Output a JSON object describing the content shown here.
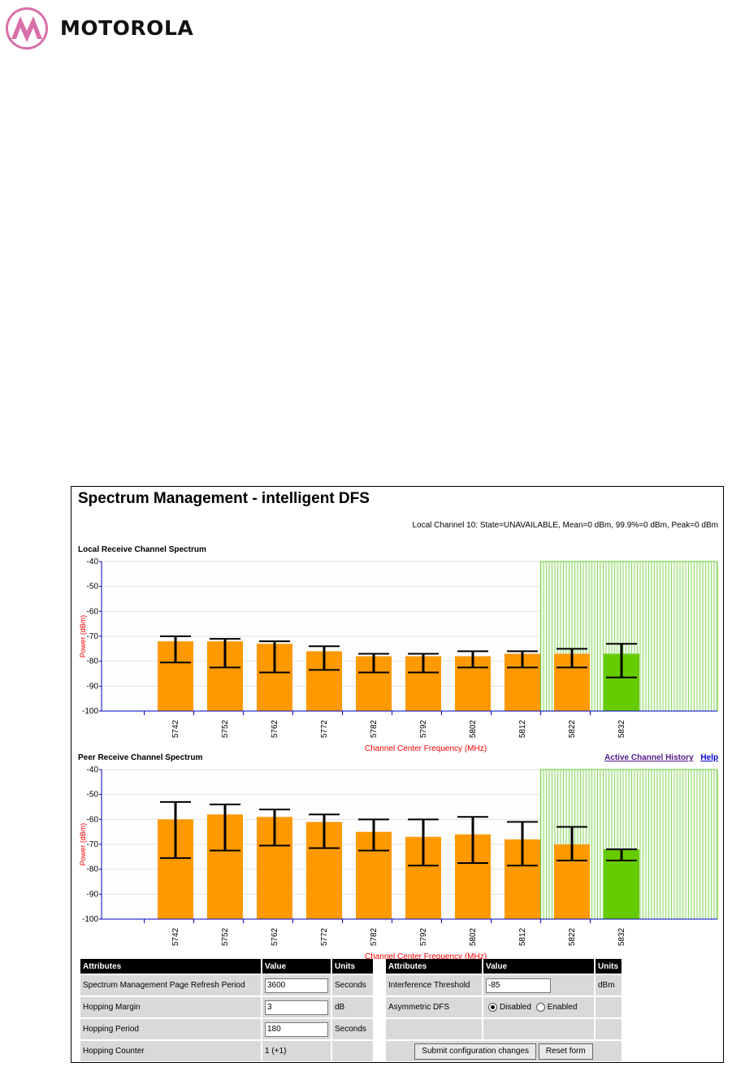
{
  "brand": {
    "name": "MOTOROLA"
  },
  "page": {
    "title": "Spectrum Management - intelligent DFS",
    "status": "Local Channel 10: State=UNAVAILABLE, Mean=0 dBm, 99.9%=0 dBm, Peak=0 dBm"
  },
  "links": {
    "history": "Active Channel History",
    "help": "Help"
  },
  "colors": {
    "bar": "#ff9900",
    "active_bar": "#66cc00",
    "axis": "#0000cc",
    "label": "#ff0000",
    "hatch": "#66cc33"
  },
  "chart_data": [
    {
      "type": "bar",
      "title": "Local Receive Channel Spectrum",
      "xlabel": "Channel Center Frequency (MHz)",
      "ylabel": "Power (dBm)",
      "ylim": [
        -100,
        -40
      ],
      "yticks": [
        -40,
        -50,
        -60,
        -70,
        -80,
        -90,
        -100
      ],
      "categories": [
        "5742",
        "5752",
        "5762",
        "5772",
        "5782",
        "5792",
        "5802",
        "5812",
        "5822",
        "5832"
      ],
      "values": [
        -72,
        -72,
        -73,
        -76,
        -78,
        -78,
        -78,
        -77,
        -77,
        -77
      ],
      "range_high": [
        -70,
        -71,
        -72,
        -74,
        -77,
        -77,
        -76,
        -76,
        -75,
        -73
      ],
      "range_low": [
        -80.5,
        -82.5,
        -84.5,
        -83.5,
        -84.5,
        -84.5,
        -82.5,
        -82.5,
        -82.5,
        -86.5
      ],
      "active_category": "5832",
      "excluded_region_from": "5822",
      "grid": true
    },
    {
      "type": "bar",
      "title": "Peer Receive Channel Spectrum",
      "xlabel": "Channel Center Frequency (MHz)",
      "ylabel": "Power (dBm)",
      "ylim": [
        -100,
        -40
      ],
      "yticks": [
        -40,
        -50,
        -60,
        -70,
        -80,
        -90,
        -100
      ],
      "categories": [
        "5742",
        "5752",
        "5762",
        "5772",
        "5782",
        "5792",
        "5802",
        "5812",
        "5822",
        "5832"
      ],
      "values": [
        -60,
        -58,
        -59,
        -61,
        -65,
        -67,
        -66,
        -68,
        -70,
        -72
      ],
      "range_high": [
        -53,
        -54,
        -56,
        -58,
        -60,
        -60,
        -59,
        -61,
        -63,
        -72
      ],
      "range_low": [
        -75.5,
        -72.5,
        -70.5,
        -71.5,
        -72.5,
        -78.5,
        -77.5,
        -78.5,
        -76.5,
        -76.5
      ],
      "active_category": "5832",
      "excluded_region_from": "5822",
      "grid": true
    }
  ],
  "table_left": {
    "headers": [
      "Attributes",
      "Value",
      "Units"
    ],
    "rows": [
      {
        "attr": "Spectrum Management Page Refresh Period",
        "value": "3600",
        "unit": "Seconds"
      },
      {
        "attr": "Hopping Margin",
        "value": "3",
        "unit": "dB"
      },
      {
        "attr": "Hopping Period",
        "value": "180",
        "unit": "Seconds"
      },
      {
        "attr": "Hopping Counter",
        "value": "1 (+1)",
        "unit": ""
      }
    ]
  },
  "table_right": {
    "headers": [
      "Attributes",
      "Value",
      "Units"
    ],
    "threshold_label": "Interference Threshold",
    "threshold_value": "-85",
    "threshold_unit": "dBm",
    "asym_label": "Asymmetric DFS",
    "asym_disabled": "Disabled",
    "asym_enabled": "Enabled",
    "asym_selected": "Disabled",
    "submit_label": "Submit configuration changes",
    "reset_label": "Reset form"
  }
}
